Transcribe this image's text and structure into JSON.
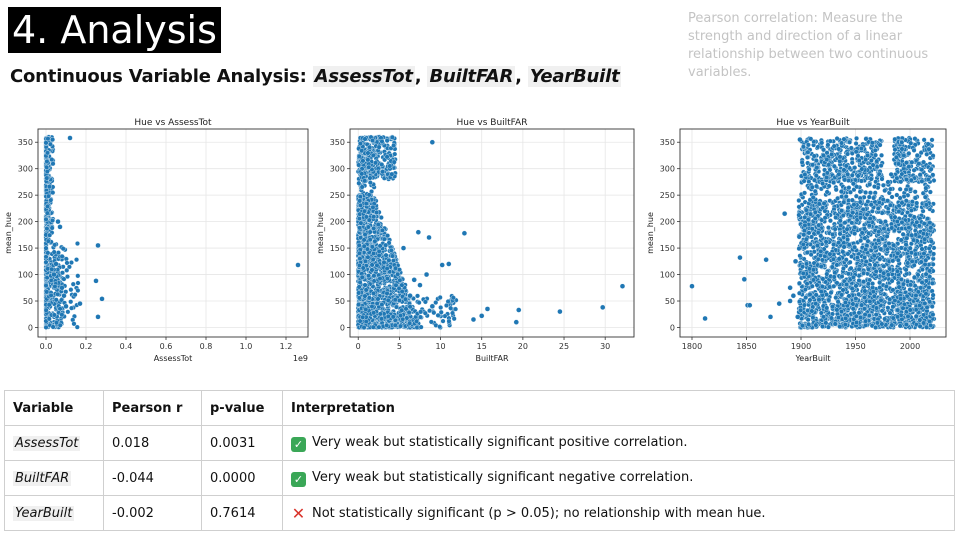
{
  "slide": {
    "title": "4. Analysis",
    "subtitle_prefix": "Continuous Variable Analysis: ",
    "subtitle_vars": [
      "AssessTot",
      "BuiltFAR",
      "YearBuilt"
    ],
    "subtitle_sep": ", ",
    "note": "Pearson correlation: Measure the strength and direction of a linear relationship between two continuous variables."
  },
  "colors": {
    "point": "#1f77b4",
    "point_edge": "#ffffff",
    "grid": "#e6e6e6",
    "axis": "#333333"
  },
  "chart_data": [
    {
      "type": "scatter",
      "title": "Hue vs AssessTot",
      "xlabel": "AssessTot",
      "ylabel": "mean_hue",
      "x_multiplier": "1e9",
      "xlim": [
        -0.04,
        1.31
      ],
      "ylim": [
        -18,
        375
      ],
      "xticks": [
        0.0,
        0.2,
        0.4,
        0.6,
        0.8,
        1.0,
        1.2
      ],
      "xtick_labels": [
        "0.0",
        "0.2",
        "0.4",
        "0.6",
        "0.8",
        "1.0",
        "1.2"
      ],
      "yticks": [
        0,
        50,
        100,
        150,
        200,
        250,
        300,
        350
      ],
      "grid": true,
      "x": [
        0.12,
        0.26,
        0.25,
        0.28,
        0.26,
        1.26,
        0.17,
        0.09,
        0.06,
        0.07,
        0.05,
        0.08,
        0.1,
        0.04
      ],
      "y": [
        358,
        155,
        88,
        54,
        20,
        118,
        45,
        60,
        200,
        190,
        120,
        75,
        40,
        100
      ]
    },
    {
      "type": "scatter",
      "title": "Hue vs BuiltFAR",
      "xlabel": "BuiltFAR",
      "ylabel": "mean_hue",
      "xlim": [
        -1.0,
        33.5
      ],
      "ylim": [
        -18,
        375
      ],
      "xticks": [
        0,
        5,
        10,
        15,
        20,
        25,
        30
      ],
      "xtick_labels": [
        "0",
        "5",
        "10",
        "15",
        "20",
        "25",
        "30"
      ],
      "yticks": [
        0,
        50,
        100,
        150,
        200,
        250,
        300,
        350
      ],
      "grid": true,
      "x": [
        32.1,
        29.7,
        24.5,
        19.5,
        19.2,
        15.7,
        15.0,
        14.0,
        12.9,
        11.0,
        10.2,
        9.0,
        8.3,
        7.5,
        6.8,
        6.3,
        5.5,
        9.0,
        7.3,
        8.6
      ],
      "y": [
        78,
        38,
        30,
        33,
        10,
        35,
        22,
        15,
        178,
        120,
        118,
        350,
        100,
        80,
        90,
        60,
        150,
        40,
        180,
        170
      ]
    },
    {
      "type": "scatter",
      "title": "Hue vs YearBuilt",
      "xlabel": "YearBuilt",
      "ylabel": "mean_hue",
      "xlim": [
        1789,
        2033
      ],
      "ylim": [
        -18,
        375
      ],
      "xticks": [
        1800,
        1850,
        1900,
        1950,
        2000
      ],
      "xtick_labels": [
        "1800",
        "1850",
        "1900",
        "1950",
        "2000"
      ],
      "yticks": [
        0,
        50,
        100,
        150,
        200,
        250,
        300,
        350
      ],
      "grid": true,
      "x": [
        1800,
        1812,
        1844,
        1848,
        1851,
        1853,
        1868,
        1872,
        1880,
        1885,
        1890,
        1893,
        1897,
        1899,
        1890,
        1895
      ],
      "y": [
        78,
        17,
        132,
        91,
        42,
        42,
        128,
        20,
        45,
        215,
        75,
        60,
        20,
        355,
        50,
        125
      ]
    }
  ],
  "table": {
    "headers": [
      "Variable",
      "Pearson r",
      "p-value",
      "Interpretation"
    ],
    "rows": [
      {
        "variable": "AssessTot",
        "r": "0.018",
        "p": "0.0031",
        "mark": "check",
        "interpretation": "Very weak but statistically significant positive correlation."
      },
      {
        "variable": "BuiltFAR",
        "r": "-0.044",
        "p": "0.0000",
        "mark": "check",
        "interpretation": "Very weak but statistically significant negative correlation."
      },
      {
        "variable": "YearBuilt",
        "r": "-0.002",
        "p": "0.7614",
        "mark": "cross",
        "interpretation": "Not statistically significant (p > 0.05); no relationship with mean hue."
      }
    ]
  }
}
